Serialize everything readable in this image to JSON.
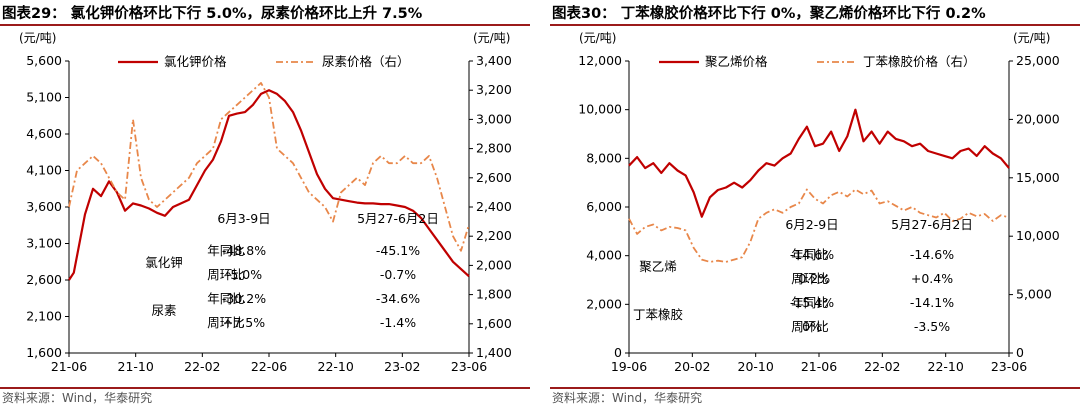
{
  "left": {
    "title": "图表29：  氯化钾价格环比下行 5.0%，尿素价格环比上升 7.5%",
    "source": "资料来源：Wind，华泰研究",
    "unit_left": "(元/吨)",
    "unit_right": "(元/吨)",
    "table": {
      "col1": "6月3-9日",
      "col2": "5月27-6月2日",
      "groups": [
        {
          "name": "氯化钾",
          "rows": [
            {
              "label": "年同比",
              "v1": "-48.8%",
              "v2": "-45.1%"
            },
            {
              "label": "周环比",
              "v1": "-5.0%",
              "v2": "-0.7%"
            }
          ]
        },
        {
          "name": "尿素",
          "rows": [
            {
              "label": "年同比",
              "v1": "-30.2%",
              "v2": "-34.6%"
            },
            {
              "label": "周环比",
              "v1": "+7.5%",
              "v2": "-1.4%"
            }
          ]
        }
      ]
    }
  },
  "right": {
    "title": "图表30：  丁苯橡胶价格环比下行 0%，聚乙烯价格环比下行 0.2%",
    "source": "资料来源：Wind，华泰研究",
    "unit_left": "(元/吨)",
    "unit_right": "(元/吨)",
    "table": {
      "col1": "6月2-9日",
      "col2": "5月27-6月2日",
      "groups": [
        {
          "name": "聚乙烯",
          "rows": [
            {
              "label": "年同比",
              "v1": "-14.6%",
              "v2": "-14.6%"
            },
            {
              "label": "周环比",
              "v1": "-0.2%",
              "v2": "+0.4%"
            }
          ]
        },
        {
          "name": "丁苯橡胶",
          "rows": [
            {
              "label": "年同比",
              "v1": "-15.4%",
              "v2": "-14.1%"
            },
            {
              "label": "周环比",
              "v1": "0%",
              "v2": "-3.5%"
            }
          ]
        }
      ]
    }
  },
  "chart_data": [
    {
      "type": "line",
      "x_ticks": [
        "21-06",
        "21-10",
        "22-02",
        "22-06",
        "22-10",
        "23-02",
        "23-06"
      ],
      "y_left": {
        "ylim": [
          1600,
          5600
        ],
        "ticks": [
          "1,600",
          "2,100",
          "2,600",
          "3,100",
          "3,600",
          "4,100",
          "4,600",
          "5,100",
          "5,600"
        ]
      },
      "y_right": {
        "ylim": [
          1400,
          3400
        ],
        "ticks": [
          "1,400",
          "1,600",
          "1,800",
          "2,000",
          "2,200",
          "2,400",
          "2,600",
          "2,800",
          "3,000",
          "3,200",
          "3,400"
        ]
      },
      "series": [
        {
          "name": "氯化钾价格",
          "axis": "left",
          "color": "#c00000",
          "style": "solid",
          "x": [
            0,
            0.3,
            1,
            1.5,
            2,
            2.5,
            3,
            3.5,
            4,
            4.5,
            5,
            5.5,
            6,
            6.5,
            7,
            7.5,
            8,
            8.5,
            9,
            9.5,
            10,
            10.5,
            11,
            11.5,
            12,
            12.5,
            13,
            13.5,
            14,
            14.5,
            15,
            15.5,
            16,
            16.5,
            17,
            17.5,
            18,
            18.5,
            19,
            19.5,
            20,
            20.5,
            21,
            21.5,
            22,
            22.5,
            23,
            23.5,
            24,
            24.5,
            25
          ],
          "y": [
            2600,
            2700,
            3500,
            3850,
            3750,
            3950,
            3800,
            3550,
            3650,
            3620,
            3580,
            3520,
            3480,
            3600,
            3650,
            3700,
            3900,
            4100,
            4250,
            4500,
            4850,
            4880,
            4900,
            5000,
            5150,
            5200,
            5150,
            5050,
            4900,
            4650,
            4350,
            4050,
            3850,
            3720,
            3700,
            3680,
            3660,
            3650,
            3650,
            3640,
            3640,
            3620,
            3600,
            3550,
            3450,
            3300,
            3150,
            3000,
            2850,
            2750,
            2650
          ]
        },
        {
          "name": "尿素价格（右）",
          "axis": "right",
          "color": "#e8874a",
          "style": "dashdot",
          "x": [
            0,
            0.5,
            1,
            1.5,
            2,
            2.5,
            3,
            3.5,
            4,
            4.5,
            5,
            5.5,
            6,
            6.5,
            7,
            7.5,
            8,
            8.5,
            9,
            9.5,
            10,
            10.5,
            11,
            11.5,
            12,
            12.5,
            13,
            13.5,
            14,
            14.5,
            15,
            15.5,
            16,
            16.5,
            17,
            17.5,
            18,
            18.5,
            19,
            19.5,
            20,
            20.5,
            21,
            21.5,
            22,
            22.5,
            23,
            23.5,
            24,
            24.5,
            25
          ],
          "y": [
            2400,
            2650,
            2700,
            2750,
            2700,
            2600,
            2500,
            2450,
            3000,
            2600,
            2450,
            2400,
            2450,
            2500,
            2550,
            2600,
            2700,
            2750,
            2800,
            3000,
            3050,
            3100,
            3150,
            3200,
            3250,
            3150,
            2800,
            2750,
            2700,
            2600,
            2500,
            2450,
            2400,
            2300,
            2500,
            2550,
            2600,
            2550,
            2700,
            2750,
            2700,
            2700,
            2750,
            2700,
            2700,
            2750,
            2600,
            2400,
            2200,
            2100,
            2280
          ]
        }
      ]
    },
    {
      "type": "line",
      "x_ticks": [
        "19-06",
        "20-02",
        "20-10",
        "21-06",
        "22-02",
        "22-10",
        "23-06"
      ],
      "y_left": {
        "ylim": [
          0,
          12000
        ],
        "ticks": [
          "0",
          "2,000",
          "4,000",
          "6,000",
          "8,000",
          "10,000",
          "12,000"
        ]
      },
      "y_right": {
        "ylim": [
          0,
          25000
        ],
        "ticks": [
          "0",
          "5,000",
          "10,000",
          "15,000",
          "20,000",
          "25,000"
        ]
      },
      "series": [
        {
          "name": "聚乙烯价格",
          "axis": "left",
          "color": "#c00000",
          "style": "solid",
          "x": [
            0,
            1,
            2,
            3,
            4,
            5,
            6,
            7,
            8,
            9,
            10,
            11,
            12,
            13,
            14,
            15,
            16,
            17,
            18,
            19,
            20,
            21,
            22,
            23,
            24,
            25,
            26,
            27,
            28,
            29,
            30,
            31,
            32,
            33,
            34,
            35,
            36,
            37,
            38,
            39,
            40,
            41,
            42,
            43,
            44,
            45,
            46,
            47
          ],
          "y": [
            7700,
            8050,
            7600,
            7800,
            7400,
            7800,
            7500,
            7300,
            6600,
            5600,
            6400,
            6700,
            6800,
            7000,
            6800,
            7100,
            7500,
            7800,
            7700,
            8000,
            8200,
            8800,
            9300,
            8500,
            8600,
            9100,
            8300,
            8900,
            10000,
            8700,
            9100,
            8600,
            9100,
            8800,
            8700,
            8500,
            8600,
            8300,
            8200,
            8100,
            8000,
            8300,
            8400,
            8100,
            8500,
            8200,
            8000,
            7600
          ]
        },
        {
          "name": "丁苯橡胶价格（右）",
          "axis": "right",
          "color": "#e8874a",
          "style": "dashdot",
          "x": [
            0,
            1,
            2,
            3,
            4,
            5,
            6,
            7,
            8,
            9,
            10,
            11,
            12,
            13,
            14,
            15,
            16,
            17,
            18,
            19,
            20,
            21,
            22,
            23,
            24,
            25,
            26,
            27,
            28,
            29,
            30,
            31,
            32,
            33,
            34,
            35,
            36,
            37,
            38,
            39,
            40,
            41,
            42,
            43,
            44,
            45,
            46,
            47
          ],
          "y": [
            11500,
            10200,
            10800,
            11000,
            10500,
            10800,
            10700,
            10500,
            9000,
            8000,
            7800,
            7900,
            7800,
            8000,
            8200,
            9500,
            11500,
            12000,
            12300,
            12000,
            12500,
            12800,
            14000,
            13200,
            12800,
            13500,
            13800,
            13400,
            14000,
            13600,
            13900,
            12800,
            13000,
            12600,
            12200,
            12500,
            12000,
            11800,
            11600,
            12000,
            11300,
            11500,
            12000,
            11700,
            11900,
            11300,
            11800,
            11600
          ]
        }
      ]
    }
  ]
}
